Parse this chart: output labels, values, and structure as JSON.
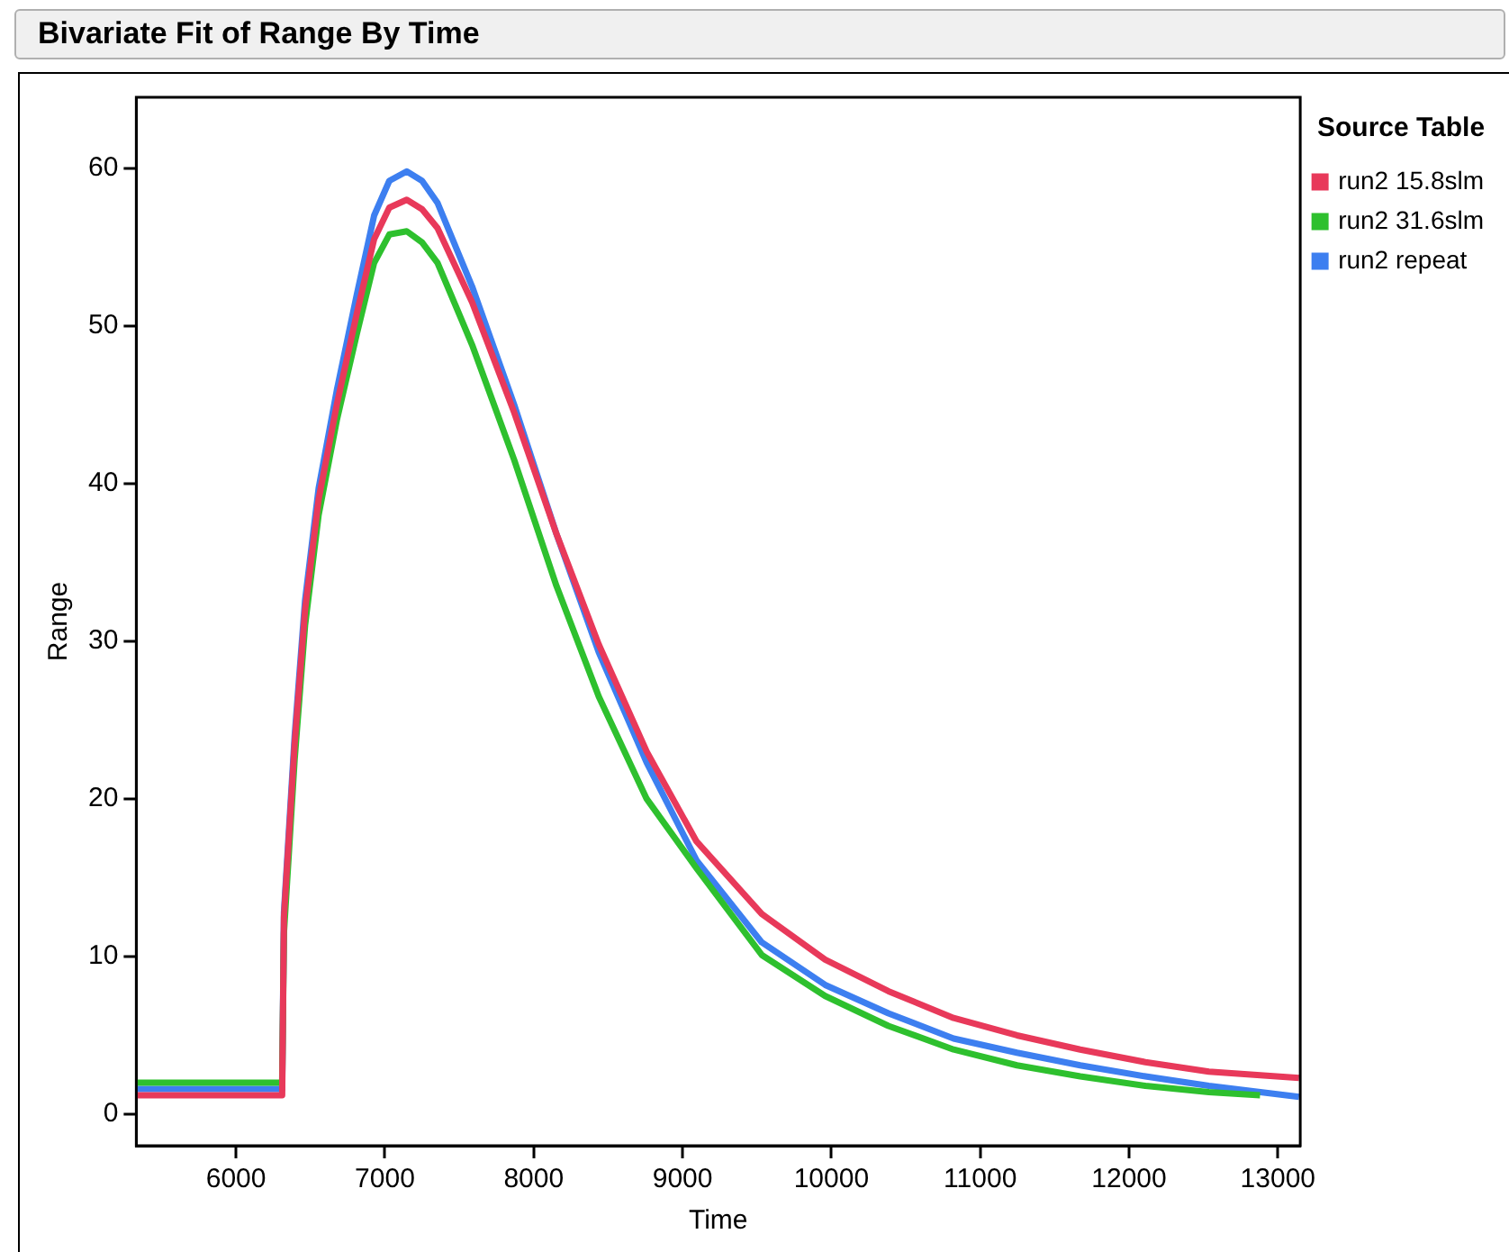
{
  "chart_data": {
    "type": "line",
    "title": "Bivariate Fit of Range By Time",
    "xlabel": "Time",
    "ylabel": "Range",
    "legend_title": "Source Table",
    "legend": "top right",
    "grid": false,
    "marker": "none",
    "line_style": "solid",
    "xlim": [
      5330,
      13150
    ],
    "xticks": [
      6000,
      7000,
      8000,
      9000,
      10000,
      11000,
      12000,
      13000
    ],
    "ylim": [
      -2,
      64.5
    ],
    "yticks": [
      0,
      10,
      20,
      30,
      40,
      50,
      60
    ],
    "series": [
      {
        "name": "run2 15.8slm",
        "color": "#e8395a",
        "x": [
          5330,
          6000,
          6310,
          6322,
          6394,
          6464,
          6555,
          6677,
          6812,
          6928,
          7030,
          7147,
          7250,
          7354,
          7586,
          7869,
          8153,
          8437,
          8759,
          9094,
          9532,
          9958,
          10383,
          10821,
          11247,
          11672,
          12110,
          12536,
          13142
        ],
        "values": [
          1.2,
          1.2,
          1.2,
          12.5,
          23.5,
          32,
          39,
          45,
          50.8,
          55.5,
          57.5,
          58,
          57.4,
          56.2,
          51.5,
          44.5,
          36.8,
          29.8,
          23,
          17.3,
          12.7,
          9.8,
          7.8,
          6.1,
          5.0,
          4.1,
          3.3,
          2.7,
          2.3
        ]
      },
      {
        "name": "run2 31.6slm",
        "color": "#2ec02e",
        "x": [
          5330,
          6000,
          6310,
          6322,
          6394,
          6464,
          6555,
          6677,
          6812,
          6928,
          7030,
          7147,
          7250,
          7354,
          7586,
          7869,
          8153,
          8437,
          8759,
          9094,
          9532,
          9958,
          10383,
          10821,
          11247,
          11672,
          12110,
          12536,
          12880
        ],
        "values": [
          2.0,
          2.0,
          2.0,
          11.5,
          22.5,
          31,
          38,
          44,
          49.5,
          54,
          55.8,
          56,
          55.3,
          54,
          48.8,
          41.5,
          33.5,
          26.5,
          20,
          15.6,
          10.1,
          7.5,
          5.6,
          4.1,
          3.1,
          2.4,
          1.8,
          1.4,
          1.2
        ]
      },
      {
        "name": "run2 repeat",
        "color": "#3d7ff0",
        "x": [
          5330,
          6000,
          6310,
          6322,
          6394,
          6464,
          6555,
          6677,
          6812,
          6928,
          7030,
          7147,
          7250,
          7354,
          7586,
          7869,
          8153,
          8437,
          8759,
          9094,
          9532,
          9958,
          10383,
          10821,
          11247,
          11672,
          12110,
          12536,
          13142
        ],
        "values": [
          1.6,
          1.6,
          1.6,
          12.8,
          24,
          32.6,
          39.7,
          45.9,
          52,
          57,
          59.2,
          59.8,
          59.2,
          57.8,
          52.5,
          45,
          36.8,
          29.3,
          22.3,
          16.1,
          10.9,
          8.2,
          6.4,
          4.8,
          3.9,
          3.1,
          2.4,
          1.8,
          1.1
        ]
      }
    ]
  }
}
